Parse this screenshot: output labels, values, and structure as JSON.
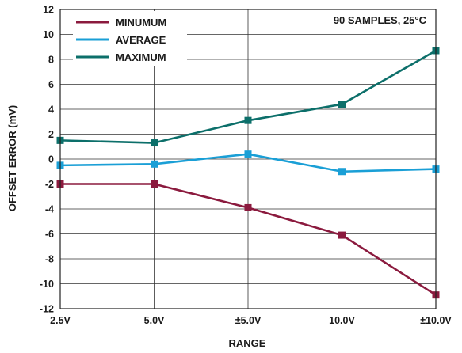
{
  "chart_data": {
    "type": "line",
    "categories": [
      "2.5V",
      "5.0V",
      "±5.0V",
      "10.0V",
      "±10.0V"
    ],
    "series": [
      {
        "name": "MINUMUM",
        "color": "#8b1a3e",
        "values": [
          -2.0,
          -2.0,
          -3.9,
          -6.1,
          -10.9
        ]
      },
      {
        "name": "AVERAGE",
        "color": "#1a9fd6",
        "values": [
          -0.5,
          -0.4,
          0.4,
          -1.0,
          -0.8
        ]
      },
      {
        "name": "MAXIMUM",
        "color": "#0c6f6a",
        "values": [
          1.5,
          1.3,
          3.1,
          4.4,
          8.7
        ]
      }
    ],
    "xlabel": "RANGE",
    "ylabel": "OFFSET ERROR (mV)",
    "ylim": [
      -12,
      12
    ],
    "yticks": [
      12,
      10,
      8,
      6,
      4,
      2,
      0,
      -2,
      -4,
      -6,
      -8,
      -10,
      -12
    ],
    "annotation": "90 SAMPLES, 25°C",
    "grid": true,
    "legend_position": "top-left",
    "marker": "square"
  }
}
